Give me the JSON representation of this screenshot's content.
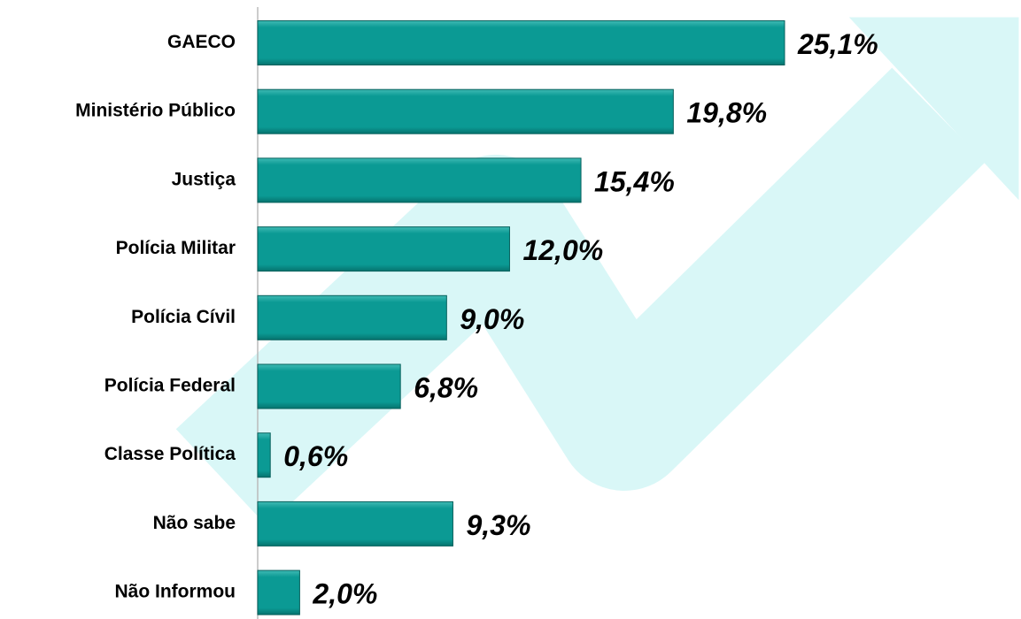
{
  "chart_data": {
    "type": "bar",
    "orientation": "horizontal",
    "categories": [
      "GAECO",
      "Ministério Público",
      "Justiça",
      "Polícia Militar",
      "Polícia Cívil",
      "Polícia Federal",
      "Classe Política",
      "Não sabe",
      "Não Informou"
    ],
    "values": [
      25.1,
      19.8,
      15.4,
      12.0,
      9.0,
      6.8,
      0.6,
      9.3,
      2.0
    ],
    "value_labels": [
      "25,1%",
      "19,8%",
      "15,4%",
      "12,0%",
      "9,0%",
      "6,8%",
      "0,6%",
      "9,3%",
      "2,0%"
    ],
    "color": "#0b9a94"
  }
}
